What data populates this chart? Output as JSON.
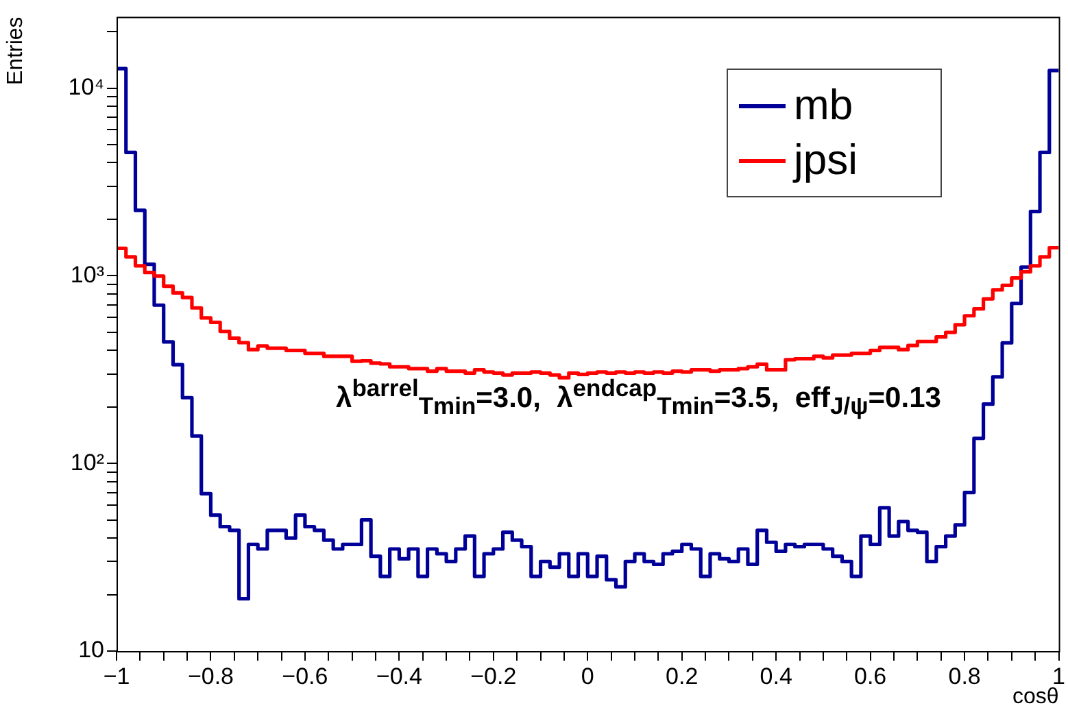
{
  "chart_data": {
    "type": "histogram",
    "xlabel": "cosθ",
    "ylabel": "Entries",
    "log": "y",
    "legend": "top right",
    "annotations": [
      "λ$^{barrel}$$_{Tmin}$=3.0,  λ$^{endcap}$$_{Tmin}$=3.5,  eff$_{J/ψ}$=0.13"
    ],
    "xlim": [
      -1,
      1
    ],
    "ylim": [
      10,
      24000
    ],
    "bins": [
      -1,
      -0.98,
      -0.96,
      -0.94,
      -0.92,
      -0.9,
      -0.88,
      -0.86,
      -0.84,
      -0.82,
      -0.8,
      -0.78,
      -0.76,
      -0.74,
      -0.72,
      -0.7,
      -0.68,
      -0.66,
      -0.64,
      -0.62,
      -0.6,
      -0.58,
      -0.56,
      -0.54,
      -0.52,
      -0.5,
      -0.48,
      -0.46,
      -0.44,
      -0.42,
      -0.4,
      -0.38,
      -0.36,
      -0.34,
      -0.32,
      -0.3,
      -0.28,
      -0.26,
      -0.24,
      -0.22,
      -0.2,
      -0.18,
      -0.16,
      -0.14,
      -0.12,
      -0.1,
      -0.08,
      -0.06,
      -0.04,
      -0.02,
      0,
      0.02,
      0.04,
      0.06,
      0.08,
      0.1,
      0.12,
      0.14,
      0.16,
      0.18,
      0.2,
      0.22,
      0.24,
      0.26,
      0.28,
      0.3,
      0.32,
      0.34,
      0.36,
      0.38,
      0.4,
      0.42,
      0.44,
      0.46,
      0.48,
      0.5,
      0.52,
      0.54,
      0.56,
      0.58,
      0.6,
      0.62,
      0.64,
      0.66,
      0.68,
      0.7,
      0.72,
      0.74,
      0.76,
      0.78,
      0.8,
      0.82,
      0.84,
      0.86,
      0.88,
      0.9,
      0.92,
      0.94,
      0.96,
      0.98,
      1
    ],
    "xticks": [
      {
        "value": -1,
        "label": "−1"
      },
      {
        "value": -0.95,
        "label": null
      },
      {
        "value": -0.9,
        "label": null
      },
      {
        "value": -0.85,
        "label": null
      },
      {
        "value": -0.8,
        "label": "−0.8"
      },
      {
        "value": -0.75,
        "label": null
      },
      {
        "value": -0.7,
        "label": null
      },
      {
        "value": -0.65,
        "label": null
      },
      {
        "value": -0.6,
        "label": "−0.6"
      },
      {
        "value": -0.55,
        "label": null
      },
      {
        "value": -0.5,
        "label": null
      },
      {
        "value": -0.45,
        "label": null
      },
      {
        "value": -0.4,
        "label": "−0.4"
      },
      {
        "value": -0.35,
        "label": null
      },
      {
        "value": -0.3,
        "label": null
      },
      {
        "value": -0.25,
        "label": null
      },
      {
        "value": -0.2,
        "label": "−0.2"
      },
      {
        "value": -0.15,
        "label": null
      },
      {
        "value": -0.1,
        "label": null
      },
      {
        "value": -0.05,
        "label": null
      },
      0,
      {
        "value": 0.05,
        "label": null
      },
      {
        "value": 0.1,
        "label": null
      },
      {
        "value": 0.15,
        "label": null
      },
      0.2,
      {
        "value": 0.25,
        "label": null
      },
      {
        "value": 0.3,
        "label": null
      },
      {
        "value": 0.35,
        "label": null
      },
      0.4,
      {
        "value": 0.45,
        "label": null
      },
      {
        "value": 0.5,
        "label": null
      },
      {
        "value": 0.55,
        "label": null
      },
      0.6,
      {
        "value": 0.65,
        "label": null
      },
      {
        "value": 0.7,
        "label": null
      },
      {
        "value": 0.75,
        "label": null
      },
      0.8,
      {
        "value": 0.85,
        "label": null
      },
      {
        "value": 0.9,
        "label": null
      },
      {
        "value": 0.95,
        "label": null
      },
      1
    ],
    "yticks": [
      10,
      {
        "value": 20,
        "label": null
      },
      {
        "value": 30,
        "label": null
      },
      {
        "value": 40,
        "label": null
      },
      {
        "value": 50,
        "label": null
      },
      {
        "value": 60,
        "label": null
      },
      {
        "value": 70,
        "label": null
      },
      {
        "value": 80,
        "label": null
      },
      {
        "value": 90,
        "label": null
      },
      {
        "value": 100,
        "label": "10²"
      },
      {
        "value": 200,
        "label": null
      },
      {
        "value": 300,
        "label": null
      },
      {
        "value": 400,
        "label": null
      },
      {
        "value": 500,
        "label": null
      },
      {
        "value": 600,
        "label": null
      },
      {
        "value": 700,
        "label": null
      },
      {
        "value": 800,
        "label": null
      },
      {
        "value": 900,
        "label": null
      },
      {
        "value": 1000,
        "label": "10³"
      },
      {
        "value": 2000,
        "label": null
      },
      {
        "value": 3000,
        "label": null
      },
      {
        "value": 4000,
        "label": null
      },
      {
        "value": 5000,
        "label": null
      },
      {
        "value": 6000,
        "label": null
      },
      {
        "value": 7000,
        "label": null
      },
      {
        "value": 8000,
        "label": null
      },
      {
        "value": 9000,
        "label": null
      },
      {
        "value": 10000,
        "label": "10⁴"
      },
      {
        "value": 20000,
        "label": null
      }
    ],
    "series": [
      {
        "name": "mb",
        "color": "#000099",
        "values": [
          12700,
          4540,
          2230,
          1150,
          697,
          444,
          336,
          224,
          140,
          69,
          53,
          46,
          44,
          19,
          37,
          35,
          44,
          44,
          40,
          53,
          46,
          44,
          39,
          35,
          37,
          37,
          50,
          32,
          25,
          35,
          31,
          35,
          25,
          35,
          33,
          30,
          35,
          41,
          25,
          33,
          35,
          43,
          39,
          36,
          25,
          30,
          28,
          33,
          25,
          33,
          25,
          32,
          24,
          22,
          30,
          33,
          30,
          29,
          33,
          34,
          37,
          35,
          25,
          33,
          31,
          30,
          35,
          29,
          44,
          38,
          34,
          37,
          36,
          37,
          37,
          35,
          32,
          30,
          25,
          41,
          37,
          58,
          41,
          49,
          44,
          43,
          30,
          36,
          41,
          47,
          70,
          136,
          207,
          289,
          439,
          712,
          1110,
          2200,
          4540,
          12400
        ]
      },
      {
        "name": "jpsi",
        "color": "#ff0000",
        "values": [
          1400,
          1260,
          1130,
          1040,
          995,
          880,
          810,
          766,
          674,
          596,
          564,
          505,
          465,
          440,
          404,
          422,
          411,
          411,
          400,
          400,
          386,
          386,
          372,
          372,
          372,
          350,
          352,
          342,
          339,
          327,
          327,
          320,
          320,
          310,
          320,
          310,
          310,
          303,
          315,
          307,
          303,
          296,
          303,
          303,
          307,
          303,
          296,
          286,
          303,
          298,
          303,
          307,
          303,
          307,
          303,
          307,
          303,
          307,
          303,
          310,
          307,
          315,
          315,
          310,
          315,
          315,
          320,
          327,
          338,
          315,
          315,
          357,
          361,
          361,
          372,
          365,
          378,
          378,
          386,
          386,
          400,
          415,
          415,
          404,
          425,
          446,
          446,
          472,
          499,
          548,
          612,
          666,
          753,
          841,
          889,
          972,
          1050,
          1130,
          1260,
          1410
        ]
      }
    ]
  }
}
